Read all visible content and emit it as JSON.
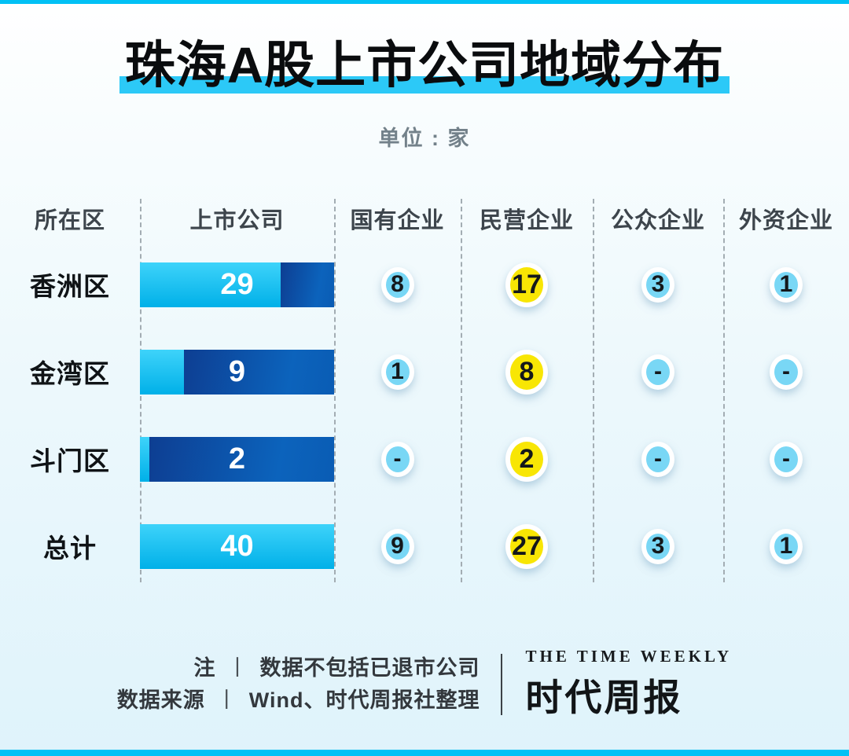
{
  "theme": {
    "accent": "#2cc9f7",
    "strip": "#00c1f5",
    "bar_cyan_top": "#3ed3fa",
    "bar_cyan_bottom": "#00b0e8",
    "bar_dark_left": "#0d3e92",
    "bar_dark_right": "#0c63bc",
    "circle_blue": "#79d7f5",
    "circle_yellow": "#f8e604"
  },
  "title": "珠海A股上市公司地域分布",
  "subtitle": "单位 : 家",
  "table": {
    "total": 40,
    "columns": [
      "所在区",
      "上市公司",
      "国有企业",
      "民营企业",
      "公众企业",
      "外资企业"
    ],
    "rows": [
      {
        "district": "香洲区",
        "listed": 29,
        "state_owned": "8",
        "private": "17",
        "public": "3",
        "foreign": "1"
      },
      {
        "district": "金湾区",
        "listed": 9,
        "state_owned": "1",
        "private": "8",
        "public": "-",
        "foreign": "-"
      },
      {
        "district": "斗门区",
        "listed": 2,
        "state_owned": "-",
        "private": "2",
        "public": "-",
        "foreign": "-"
      },
      {
        "district": "总计",
        "listed": 40,
        "state_owned": "9",
        "private": "27",
        "public": "3",
        "foreign": "1"
      }
    ]
  },
  "footer": {
    "note_label": "注",
    "separator": "丨",
    "note": "数据不包括已退市公司",
    "source_label": "数据来源",
    "source": "Wind、时代周报社整理",
    "logo_en": "THE TIME WEEKLY",
    "logo_cn": "时代周报"
  },
  "chart_data": {
    "type": "table",
    "title": "珠海A股上市公司地域分布",
    "unit": "家",
    "columns": [
      "所在区",
      "上市公司",
      "国有企业",
      "民营企业",
      "公众企业",
      "外资企业"
    ],
    "rows": [
      [
        "香洲区",
        29,
        8,
        17,
        3,
        1
      ],
      [
        "金湾区",
        9,
        1,
        8,
        null,
        null
      ],
      [
        "斗门区",
        2,
        null,
        2,
        null,
        null
      ],
      [
        "总计",
        40,
        9,
        27,
        3,
        1
      ]
    ],
    "bar_series": {
      "name": "上市公司",
      "categories": [
        "香洲区",
        "金湾区",
        "斗门区",
        "总计"
      ],
      "values": [
        29,
        9,
        2,
        40
      ],
      "bar_total": 40,
      "note": "每条横条的青色部分比例 = 值/40，其余为深蓝色"
    },
    "legend_position": "none",
    "grid": "dashed-vertical-dividers"
  }
}
